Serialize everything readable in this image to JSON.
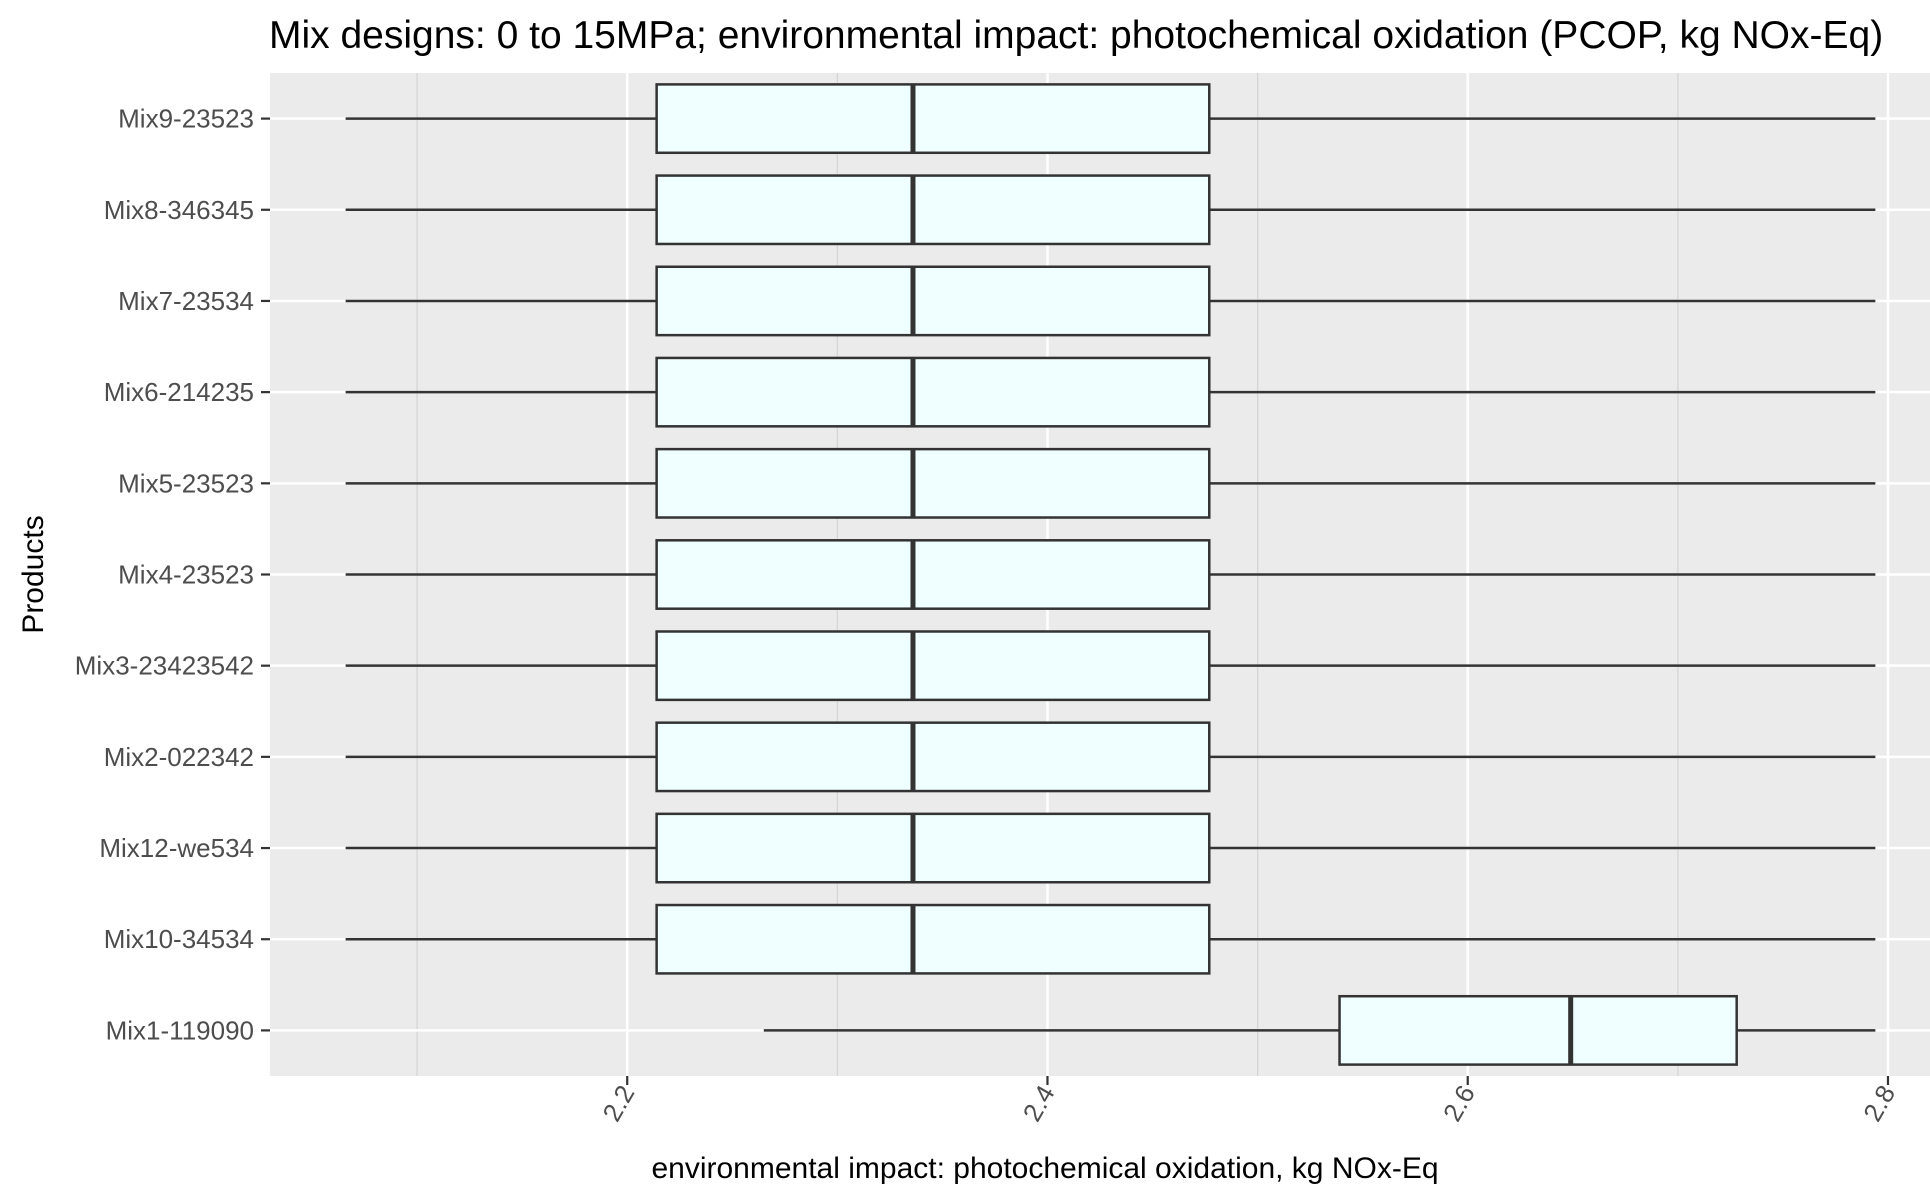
{
  "chart_data": {
    "type": "boxplot",
    "orientation": "horizontal",
    "title": "Mix designs: 0 to 15MPa; environmental impact: photochemical oxidation (PCOP, kg NOx-Eq)",
    "xlabel": "environmental impact: photochemical oxidation, kg NOx-Eq",
    "ylabel": "Products",
    "xlim": [
      2.03,
      2.82
    ],
    "x_ticks": [
      2.2,
      2.4,
      2.6,
      2.8
    ],
    "x_tick_labels": [
      "2.2",
      "2.4",
      "2.6",
      "2.8"
    ],
    "grid": true,
    "colors": {
      "panel": "#ebebeb",
      "grid": "#ffffff",
      "box_fill": "#f0ffff",
      "box_stroke": "#333333",
      "whisker": "#333333"
    },
    "categories": [
      "Mix9-23523",
      "Mix8-346345",
      "Mix7-23534",
      "Mix6-214235",
      "Mix5-23523",
      "Mix4-23523",
      "Mix3-23423542",
      "Mix2-022342",
      "Mix12-we534",
      "Mix10-34534",
      "Mix1-119090"
    ],
    "boxes": [
      {
        "name": "Mix9-23523",
        "min": 2.066,
        "q1": 2.214,
        "median": 2.336,
        "q3": 2.477,
        "max": 2.794
      },
      {
        "name": "Mix8-346345",
        "min": 2.066,
        "q1": 2.214,
        "median": 2.336,
        "q3": 2.477,
        "max": 2.794
      },
      {
        "name": "Mix7-23534",
        "min": 2.066,
        "q1": 2.214,
        "median": 2.336,
        "q3": 2.477,
        "max": 2.794
      },
      {
        "name": "Mix6-214235",
        "min": 2.066,
        "q1": 2.214,
        "median": 2.336,
        "q3": 2.477,
        "max": 2.794
      },
      {
        "name": "Mix5-23523",
        "min": 2.066,
        "q1": 2.214,
        "median": 2.336,
        "q3": 2.477,
        "max": 2.794
      },
      {
        "name": "Mix4-23523",
        "min": 2.066,
        "q1": 2.214,
        "median": 2.336,
        "q3": 2.477,
        "max": 2.794
      },
      {
        "name": "Mix3-23423542",
        "min": 2.066,
        "q1": 2.214,
        "median": 2.336,
        "q3": 2.477,
        "max": 2.794
      },
      {
        "name": "Mix2-022342",
        "min": 2.066,
        "q1": 2.214,
        "median": 2.336,
        "q3": 2.477,
        "max": 2.794
      },
      {
        "name": "Mix12-we534",
        "min": 2.066,
        "q1": 2.214,
        "median": 2.336,
        "q3": 2.477,
        "max": 2.794
      },
      {
        "name": "Mix10-34534",
        "min": 2.066,
        "q1": 2.214,
        "median": 2.336,
        "q3": 2.477,
        "max": 2.794
      },
      {
        "name": "Mix1-119090",
        "min": 2.265,
        "q1": 2.539,
        "median": 2.649,
        "q3": 2.728,
        "max": 2.794
      }
    ]
  }
}
